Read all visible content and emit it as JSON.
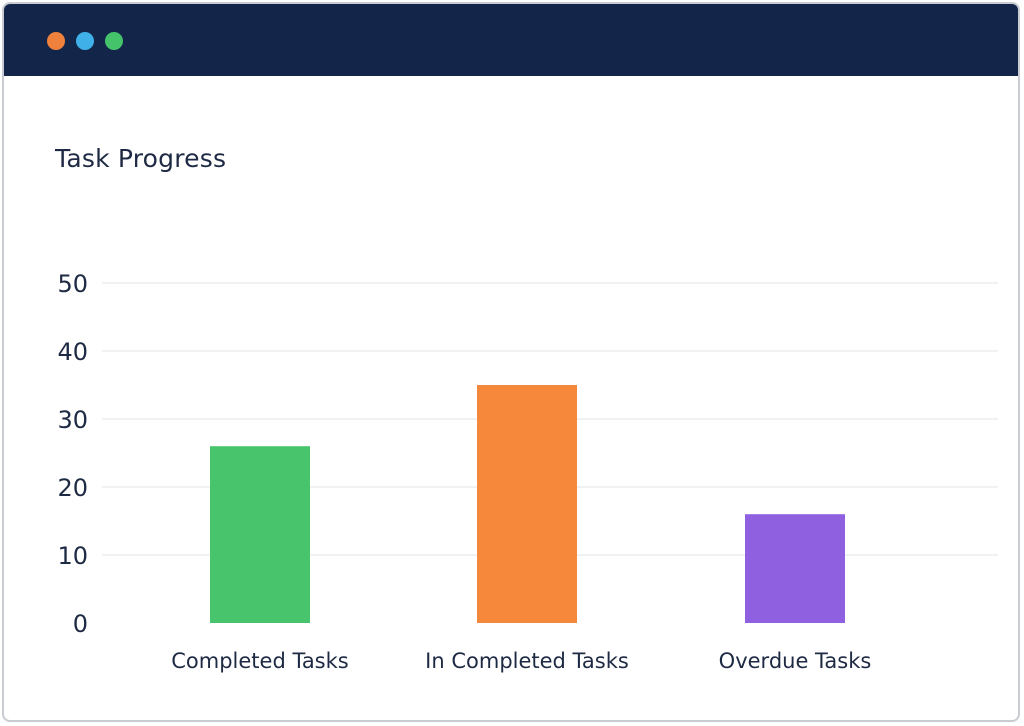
{
  "window": {
    "title_dots": [
      {
        "name": "close",
        "color": "#f0813c"
      },
      {
        "name": "minimize",
        "color": "#3fb1e8"
      },
      {
        "name": "maximize",
        "color": "#44c36a"
      }
    ],
    "titlebar_color": "#13264a"
  },
  "chart_data": {
    "type": "bar",
    "title": "Task Progress",
    "xlabel": "",
    "ylabel": "",
    "categories": [
      "Completed Tasks",
      "In Completed Tasks",
      "Overdue Tasks"
    ],
    "values": [
      26,
      35,
      16
    ],
    "colors": [
      "#48c46c",
      "#f5883a",
      "#8f60e0"
    ],
    "ylim": [
      0,
      50
    ],
    "yticks": [
      0,
      10,
      20,
      30,
      40,
      50
    ],
    "grid": true,
    "legend": "none"
  }
}
